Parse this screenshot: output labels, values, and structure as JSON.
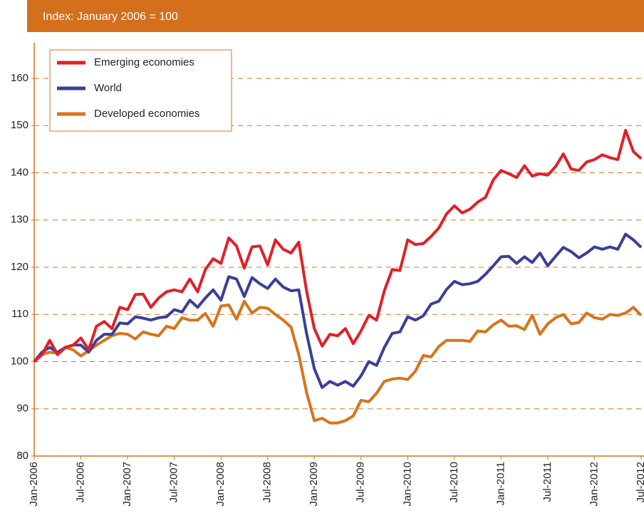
{
  "chart_data": {
    "type": "line",
    "title": "Index: January 2006 = 100",
    "categories": [
      "Jan-2006",
      null,
      null,
      null,
      null,
      null,
      "Jul-2006",
      null,
      null,
      null,
      null,
      null,
      "Jan-2007",
      null,
      null,
      null,
      null,
      null,
      "Jul-2007",
      null,
      null,
      null,
      null,
      null,
      "Jan-2008",
      null,
      null,
      null,
      null,
      null,
      "Jul-2008",
      null,
      null,
      null,
      null,
      null,
      "Jan-2009",
      null,
      null,
      null,
      null,
      null,
      "Jul-2009",
      null,
      null,
      null,
      null,
      null,
      "Jan-2010",
      null,
      null,
      null,
      null,
      null,
      "Jul-2010",
      null,
      null,
      null,
      null,
      null,
      "Jan-2011",
      null,
      null,
      null,
      null,
      null,
      "Jul-2011",
      null,
      null,
      null,
      null,
      null,
      "Jan-2012",
      null,
      null,
      null,
      null,
      null,
      "Jul-2012"
    ],
    "series": [
      {
        "name": "Emerging economies",
        "color": "#e0202a",
        "values": [
          100,
          101.5,
          104.5,
          101.5,
          103,
          103.5,
          105,
          102.5,
          107.5,
          108.5,
          107,
          111.5,
          111,
          114.2,
          114.3,
          111.5,
          113.5,
          114.8,
          115.2,
          114.8,
          117.5,
          114.8,
          119.5,
          121.8,
          120.8,
          126.2,
          124.5,
          119.8,
          124.3,
          124.5,
          120.5,
          125.8,
          123.8,
          123,
          125.3,
          115,
          107,
          103.3,
          105.8,
          105.5,
          107,
          103.8,
          106.5,
          109.8,
          108.8,
          115,
          119.5,
          119.3,
          125.8,
          124.8,
          125,
          126.5,
          128.3,
          131.3,
          133,
          131.5,
          132.3,
          133.8,
          134.8,
          138.5,
          140.5,
          139.8,
          139,
          141.5,
          139.3,
          139.8,
          139.5,
          141.3,
          144,
          140.8,
          140.5,
          142.3,
          142.8,
          143.8,
          143.2,
          142.8,
          149,
          144.5,
          143
        ]
      },
      {
        "name": "World",
        "color": "#3a3f9a",
        "values": [
          100,
          102,
          103,
          102,
          103,
          103.5,
          103.5,
          102,
          104.5,
          105.8,
          105.8,
          108.2,
          108,
          109.5,
          109.2,
          108.8,
          109.3,
          109.5,
          111,
          110.5,
          113,
          111.5,
          113.5,
          115.2,
          113,
          118,
          117.5,
          113.8,
          117.8,
          116.5,
          115.5,
          117.5,
          115.8,
          115,
          115.2,
          106,
          98.5,
          94.5,
          95.8,
          95,
          95.8,
          94.8,
          97,
          100,
          99.2,
          103,
          106,
          106.3,
          109.5,
          108.8,
          109.7,
          112.2,
          112.8,
          115.3,
          117,
          116.3,
          116.5,
          117,
          118.5,
          120.3,
          122.2,
          122.3,
          120.8,
          122.2,
          121,
          123,
          120.3,
          122.3,
          124.2,
          123.3,
          122,
          123,
          124.3,
          123.8,
          124.3,
          123.8,
          127,
          125.8,
          124.2
        ]
      },
      {
        "name": "Developed economies",
        "color": "#d7741c",
        "values": [
          100,
          101.5,
          102,
          101.8,
          103,
          102.5,
          101.2,
          102.3,
          103.5,
          104.5,
          105.5,
          106,
          105.8,
          104.8,
          106.3,
          105.8,
          105.5,
          107.5,
          107,
          109.3,
          108.8,
          108.8,
          110.2,
          107.5,
          111.8,
          112,
          109,
          112.8,
          110.3,
          111.5,
          111.3,
          110,
          108.8,
          107.3,
          101.5,
          93.5,
          87.5,
          88,
          87,
          87,
          87.5,
          88.5,
          91.8,
          91.5,
          93.3,
          95.8,
          96.3,
          96.5,
          96.2,
          98,
          101.3,
          101,
          103.2,
          104.5,
          104.5,
          104.5,
          104.3,
          106.5,
          106.3,
          107.8,
          108.8,
          107.5,
          107.6,
          106.8,
          109.8,
          105.8,
          108,
          109.3,
          110,
          108,
          108.3,
          110.3,
          109.3,
          109,
          110,
          109.8,
          110.3,
          111.5,
          109.8
        ]
      }
    ],
    "ylim": [
      80,
      160
    ],
    "yticks": [
      80,
      90,
      100,
      110,
      120,
      130,
      140,
      150,
      160
    ],
    "grid": true,
    "legend": "upper left"
  }
}
